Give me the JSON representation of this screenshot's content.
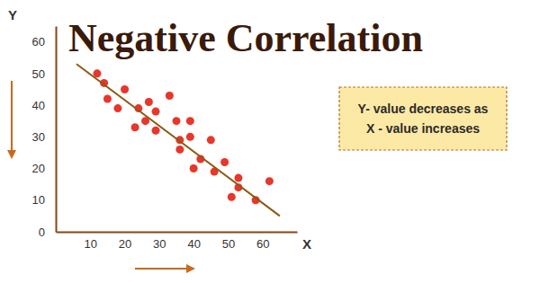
{
  "chart_data": {
    "type": "scatter",
    "title": "Negative Correlation",
    "x_label": "X",
    "y_label": "Y",
    "annotation": [
      "Y- value decreases as",
      "X - value increases"
    ],
    "series": [
      {
        "type": "scatter",
        "color": "#e8362a",
        "marker": "circle",
        "x": [
          12,
          14,
          15,
          18,
          20,
          23,
          24,
          26,
          27,
          29,
          29,
          33,
          35,
          36,
          36,
          39,
          39,
          40,
          42,
          45,
          46,
          49,
          51,
          53,
          53,
          58,
          62
        ],
        "values": [
          50,
          47,
          42,
          39,
          45,
          33,
          39,
          35,
          41,
          38,
          32,
          43,
          35,
          29,
          26,
          30,
          35,
          20,
          23,
          29,
          19,
          22,
          11,
          14,
          17,
          10,
          16
        ]
      },
      {
        "type": "line",
        "color": "#8b5a14",
        "line_style": "solid",
        "x": [
          6,
          65
        ],
        "values": [
          53,
          5
        ]
      }
    ],
    "xlim": [
      0,
      70
    ],
    "ylim": [
      0,
      65
    ],
    "xticks": [
      10,
      20,
      30,
      40,
      50,
      60
    ],
    "yticks": [
      0,
      10,
      20,
      30,
      40,
      50,
      60
    ],
    "grid": false
  }
}
